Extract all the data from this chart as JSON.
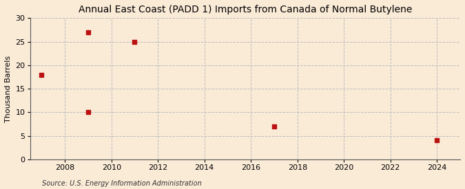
{
  "title": "Annual East Coast (PADD 1) Imports from Canada of Normal Butylene",
  "ylabel": "Thousand Barrels",
  "source": "Source: U.S. Energy Information Administration",
  "background_color": "#faebd7",
  "plot_background_color": "#faebd7",
  "data_x": [
    2007,
    2009,
    2009,
    2011,
    2017,
    2024
  ],
  "data_y": [
    18,
    10,
    27,
    25,
    7,
    4
  ],
  "marker_color": "#bb1111",
  "marker_size": 18,
  "xlim": [
    2006.5,
    2025
  ],
  "ylim": [
    0,
    30
  ],
  "xticks": [
    2008,
    2010,
    2012,
    2014,
    2016,
    2018,
    2020,
    2022,
    2024
  ],
  "yticks": [
    0,
    5,
    10,
    15,
    20,
    25,
    30
  ],
  "grid_color": "#bbbbbb",
  "grid_style": "--",
  "title_fontsize": 10,
  "label_fontsize": 8,
  "tick_fontsize": 8,
  "source_fontsize": 7
}
